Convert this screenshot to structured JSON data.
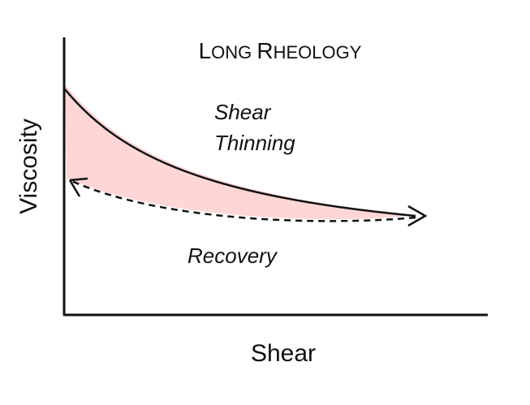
{
  "diagram": {
    "title_parts": [
      {
        "text": "L",
        "size": "large"
      },
      {
        "text": "ONG ",
        "size": "small"
      },
      {
        "text": "R",
        "size": "large"
      },
      {
        "text": "HEOLOGY",
        "size": "small"
      }
    ],
    "labels": {
      "shear_thinning_line1": "Shear",
      "shear_thinning_line2": "Thinning",
      "recovery": "Recovery"
    },
    "axes": {
      "xlabel": "Shear",
      "ylabel": "Viscosity"
    },
    "colors": {
      "hysteresis_fill": "#ffd6d6",
      "curve_stroke": "#111111",
      "axis_stroke": "#111111"
    }
  }
}
